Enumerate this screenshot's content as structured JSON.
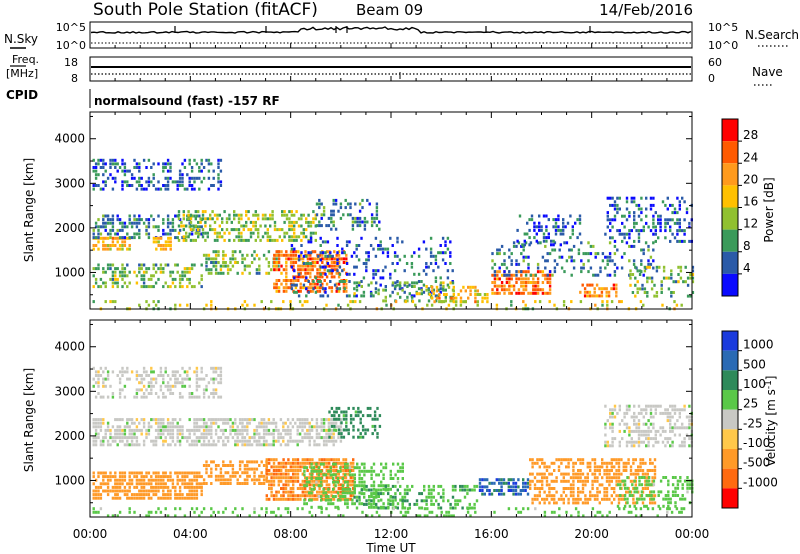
{
  "header": {
    "station": "South Pole Station (fitACF)",
    "beam": "Beam 09",
    "date": "14/Feb/2016"
  },
  "top_panels": {
    "nsky_label": "N.Sky",
    "nsearch_label": "N.Search",
    "noise_ticks": [
      "10^5",
      "10^0"
    ],
    "freq_label_line1": "Freq.",
    "freq_label_line2": "[MHz]",
    "freq_ticks": [
      "18",
      "8"
    ],
    "nave_label": "Nave",
    "nave_ticks": [
      "60",
      "0"
    ],
    "cpid_label": "CPID",
    "cpid_text": "normalsound (fast) -157 RF"
  },
  "power_legend": {
    "title": "Power [dB]",
    "ticks": [
      "28",
      "24",
      "20",
      "16",
      "12",
      "8",
      "4"
    ],
    "colors": [
      "#ff0000",
      "#ff5a00",
      "#ff9a1c",
      "#ffc000",
      "#90c030",
      "#3a9a5a",
      "#2a5aa8",
      "#0a0aff"
    ]
  },
  "velocity_legend": {
    "title": "Velocity [m s-1]",
    "ticks": [
      "1000",
      "500",
      "100",
      "25",
      "-25",
      "-100",
      "-500",
      "-1000"
    ],
    "colors": [
      "#1a3adc",
      "#2a6ab4",
      "#2e8a5a",
      "#5ac848",
      "#c8c8c4",
      "#ffc84a",
      "#ff9a28",
      "#ff6a10",
      "#ff0000"
    ]
  },
  "chart_data": [
    {
      "type": "heatmap",
      "title": "Power",
      "xlabel": "",
      "ylabel": "Slant Range [km]",
      "x_ticks": [
        "00:00",
        "04:00",
        "08:00",
        "12:00",
        "16:00",
        "20:00",
        "00:00"
      ],
      "y_ticks": [
        1000,
        2000,
        3000,
        4000
      ],
      "xlim": [
        0,
        24
      ],
      "ylim": [
        180,
        4600
      ],
      "value_range": [
        0,
        30
      ],
      "patches": [
        {
          "t": [
            0.1,
            5.2
          ],
          "r": [
            2850,
            3550
          ],
          "v": 6,
          "d": 0.35
        },
        {
          "t": [
            0.1,
            1.6
          ],
          "r": [
            1550,
            1800
          ],
          "v": 20,
          "d": 0.7
        },
        {
          "t": [
            0.1,
            4.5
          ],
          "r": [
            1800,
            2300
          ],
          "v": 8,
          "d": 0.45
        },
        {
          "t": [
            3.5,
            9.0
          ],
          "r": [
            1700,
            2400
          ],
          "v": 14,
          "d": 0.5
        },
        {
          "t": [
            9.0,
            11.5
          ],
          "r": [
            2000,
            2650
          ],
          "v": 8,
          "d": 0.35
        },
        {
          "t": [
            2.5,
            3.2
          ],
          "r": [
            1550,
            1800
          ],
          "v": 20,
          "d": 0.7
        },
        {
          "t": [
            0.1,
            4.5
          ],
          "r": [
            700,
            1200
          ],
          "v": 12,
          "d": 0.45
        },
        {
          "t": [
            4.5,
            7.5
          ],
          "r": [
            1000,
            1500
          ],
          "v": 12,
          "d": 0.4
        },
        {
          "t": [
            7.3,
            10.2
          ],
          "r": [
            550,
            1500
          ],
          "v": 24,
          "d": 0.65
        },
        {
          "t": [
            8.0,
            14.5
          ],
          "r": [
            450,
            1800
          ],
          "v": 6,
          "d": 0.22
        },
        {
          "t": [
            10.5,
            14.5
          ],
          "r": [
            350,
            800
          ],
          "v": 12,
          "d": 0.3
        },
        {
          "t": [
            13.5,
            15.8
          ],
          "r": [
            350,
            700
          ],
          "v": 20,
          "d": 0.45
        },
        {
          "t": [
            16.0,
            18.3
          ],
          "r": [
            500,
            1050
          ],
          "v": 24,
          "d": 0.6
        },
        {
          "t": [
            16.0,
            22.5
          ],
          "r": [
            900,
            1700
          ],
          "v": 8,
          "d": 0.25
        },
        {
          "t": [
            17.0,
            19.5
          ],
          "r": [
            1650,
            2300
          ],
          "v": 6,
          "d": 0.3
        },
        {
          "t": [
            19.5,
            21.0
          ],
          "r": [
            450,
            750
          ],
          "v": 24,
          "d": 0.6
        },
        {
          "t": [
            20.5,
            24.0
          ],
          "r": [
            1650,
            2700
          ],
          "v": 6,
          "d": 0.35
        },
        {
          "t": [
            21.5,
            24.0
          ],
          "r": [
            450,
            1150
          ],
          "v": 12,
          "d": 0.3
        },
        {
          "t": [
            0.1,
            24.0
          ],
          "r": [
            190,
            380
          ],
          "v": 16,
          "d": 0.18
        }
      ]
    },
    {
      "type": "heatmap",
      "title": "Velocity",
      "xlabel": "Time UT",
      "ylabel": "Slant Range [km]",
      "x_ticks": [
        "00:00",
        "04:00",
        "08:00",
        "12:00",
        "16:00",
        "20:00",
        "00:00"
      ],
      "y_ticks": [
        1000,
        2000,
        3000,
        4000
      ],
      "xlim": [
        0,
        24
      ],
      "ylim": [
        180,
        4600
      ],
      "value_range": [
        -1000,
        1000
      ],
      "patches": [
        {
          "t": [
            0.1,
            5.2
          ],
          "r": [
            2850,
            3550
          ],
          "v": 0,
          "d": 0.45
        },
        {
          "t": [
            0.1,
            10.0
          ],
          "r": [
            1800,
            2400
          ],
          "v": 0,
          "d": 0.6
        },
        {
          "t": [
            9.5,
            11.6
          ],
          "r": [
            2000,
            2650
          ],
          "v": 200,
          "d": 0.4
        },
        {
          "t": [
            0.1,
            4.5
          ],
          "r": [
            600,
            1200
          ],
          "v": -250,
          "d": 0.75
        },
        {
          "t": [
            4.5,
            7.0
          ],
          "r": [
            900,
            1450
          ],
          "v": -250,
          "d": 0.6
        },
        {
          "t": [
            7.0,
            10.5
          ],
          "r": [
            600,
            1500
          ],
          "v": -400,
          "d": 0.75
        },
        {
          "t": [
            8.5,
            12.5
          ],
          "r": [
            350,
            1400
          ],
          "v": 60,
          "d": 0.45
        },
        {
          "t": [
            10.5,
            15.5
          ],
          "r": [
            350,
            900
          ],
          "v": 80,
          "d": 0.45
        },
        {
          "t": [
            15.5,
            17.5
          ],
          "r": [
            700,
            1050
          ],
          "v": 800,
          "d": 0.7
        },
        {
          "t": [
            17.5,
            22.5
          ],
          "r": [
            500,
            1500
          ],
          "v": -250,
          "d": 0.55
        },
        {
          "t": [
            20.5,
            24.0
          ],
          "r": [
            1800,
            2700
          ],
          "v": 0,
          "d": 0.45
        },
        {
          "t": [
            21.0,
            24.0
          ],
          "r": [
            400,
            1100
          ],
          "v": 60,
          "d": 0.35
        },
        {
          "t": [
            0.1,
            24.0
          ],
          "r": [
            190,
            400
          ],
          "v": 60,
          "d": 0.2
        }
      ]
    }
  ]
}
